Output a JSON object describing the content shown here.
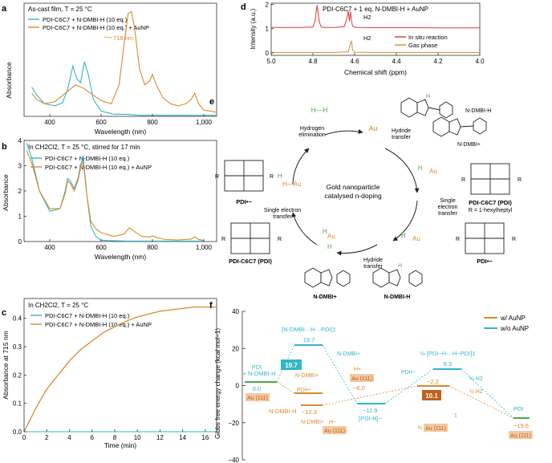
{
  "panels": {
    "a": {
      "letter": "a",
      "legend_title": "As-cast film, T = 25 °C",
      "legend": [
        "PDI-C6C7 + N-DMBI-H (10 eq.)",
        "PDI-C6C7 + N-DMBI-H (10 eq.) + AuNP"
      ],
      "peak_label": "718 nm",
      "xlabel": "Wavelength (nm)",
      "ylabel": "Absorbance",
      "xticks": [
        "400",
        "600",
        "800",
        "1,000"
      ]
    },
    "b": {
      "letter": "b",
      "legend_title": "In CH2Cl2, T = 25 °C, stirred for 17 min",
      "legend": [
        "PDI-C6C7 + N-DMBI-H (10 eq.)",
        "PDI-C6C7 + N-DMBI-H (10 eq.) + AuNP"
      ],
      "xlabel": "Wavelength (nm)",
      "ylabel": "Absorbance",
      "xticks": [
        "400",
        "600",
        "800",
        "1,000"
      ],
      "yticks": [
        "0",
        "1",
        "2",
        "3",
        "4"
      ]
    },
    "c": {
      "letter": "c",
      "legend_title": "In CH2Cl2, T = 25 °C",
      "legend": [
        "PDI-C6C7 + N-DMBI-H (10 eq.)",
        "PDI-C6C7 + N-DMBI-H (10 eq.) + AuNP"
      ],
      "xlabel": "Time (min)",
      "ylabel": "Absorbance at 715 nm",
      "xticks": [
        "0",
        "2",
        "4",
        "6",
        "8",
        "10",
        "12",
        "14",
        "16"
      ],
      "yticks": [
        "0.0",
        "0.1",
        "0.2",
        "0.3",
        "0.4"
      ]
    },
    "d": {
      "letter": "d",
      "title": "PDI-C6C7 + 1 eq. N-DMBI-H + AuNP",
      "h2_label": "H2",
      "legend": [
        "In situ reaction",
        "Gas phase"
      ],
      "xlabel": "Chemical shift (ppm)",
      "ylabel": "Intensity (a.u.)",
      "xticks": [
        "5.0",
        "4.8",
        "4.6",
        "4.4",
        "4.2",
        "4.0"
      ],
      "yticks": [
        "0",
        "1",
        "2"
      ]
    },
    "e": {
      "letter": "e",
      "center_text": [
        "Gold nanoparticle",
        "catalysed n-doping"
      ],
      "labels": {
        "h2": "H—H",
        "au": "Au",
        "hydrogen_elim": [
          "Hydrogen",
          "elimination"
        ],
        "hydride_transfer": [
          "Hydride",
          "transfer"
        ],
        "single_et": [
          "Single",
          "electron",
          "transfer"
        ],
        "single_et_left": [
          "Single electron",
          "transfer"
        ],
        "ndmbi_h_dot": "N-DMBI-H",
        "ndmbi_plus": "N-DMBI+",
        "ndmbi_h": "N-DMBI-H",
        "pdi": "PDI-C6C7 (PDI)",
        "r_def": "R = 1-hexylheptyl",
        "pdi_minus": "PDI•−",
        "pdi_c6c7": "PDI-C6C7 (PDI)",
        "r": "R",
        "h": "H",
        "h_au": "H—Au"
      }
    },
    "f": {
      "letter": "f",
      "ylabel": "Gibbs free energy change (kcal mol−1)",
      "yticks": [
        "40",
        "20",
        "0",
        "−20",
        "−40"
      ],
      "legend": [
        "w/ AuNP",
        "w/o AuNP"
      ],
      "labels": {
        "pdi_start": "PDI",
        "ndmbi_start": "+ N-DMBI-H",
        "v0": "0.0",
        "ts1": "[N-DMBI···H···PDI]‡",
        "v197": "19.7",
        "barrier1": "19.7",
        "ndmbi_plus_a": "N-DMBI+",
        "ndmbi_plus_b": "N-DMBI+",
        "pdi_rad": "PDI•−",
        "h_plus": "H+",
        "au111_a": "Au (111)",
        "vm60": "−6.0",
        "vm123": "−12.3",
        "ndmbih": "N-DMBI-H",
        "ndmbi_plus_c": "N-DMBI+",
        "h_minus": "H−",
        "au111_b": "Au (111)",
        "vm119": "−11.9",
        "pdih": "[PDI-H]−",
        "ts2": "½ [PDI−H···H−PDI]‡",
        "v63": "6.3",
        "pdi_minus2": "PDI•−",
        "half_h2_a": "½ H2",
        "half_h2_b": "½ H2",
        "vm22": "−2.2",
        "barrier2": "10.1",
        "half_au": "½",
        "au111_c": "Au (111)",
        "dagger": "‡",
        "pdi_end": "PDI",
        "vm196": "−19.6",
        "au111_d": "Au (111)",
        "au111_start": "Au (111)"
      }
    }
  },
  "colors": {
    "teal": "#33b5c9",
    "orange": "#d98a2b",
    "red": "#d93a3a",
    "green": "#4caa4c"
  },
  "chart_data": [
    {
      "type": "line",
      "panel": "a",
      "series": [
        {
          "name": "PDI-C6C7 + N-DMBI-H (10 eq.)",
          "x": [
            330,
            350,
            380,
            420,
            450,
            470,
            490,
            505,
            520,
            535,
            550,
            570,
            600,
            650,
            700,
            750,
            800,
            850,
            900,
            950,
            1000,
            1050
          ],
          "values": [
            0.28,
            0.2,
            0.12,
            0.1,
            0.13,
            0.26,
            0.48,
            0.36,
            0.32,
            0.52,
            0.4,
            0.16,
            0.05,
            0.02,
            0.02,
            0.01,
            0.01,
            0.01,
            0.01,
            0.01,
            0.01,
            0.01
          ]
        },
        {
          "name": "PDI-C6C7 + N-DMBI-H (10 eq.) + AuNP",
          "x": [
            330,
            350,
            380,
            420,
            450,
            480,
            500,
            530,
            560,
            600,
            640,
            670,
            690,
            705,
            718,
            730,
            750,
            770,
            790,
            800,
            815,
            840,
            870,
            900,
            930,
            950,
            965,
            980,
            1000,
            1050
          ],
          "values": [
            0.22,
            0.16,
            0.12,
            0.14,
            0.2,
            0.26,
            0.3,
            0.27,
            0.22,
            0.15,
            0.12,
            0.3,
            0.7,
            0.98,
            1.0,
            0.85,
            0.45,
            0.3,
            0.34,
            0.4,
            0.3,
            0.18,
            0.12,
            0.1,
            0.12,
            0.16,
            0.22,
            0.12,
            0.06,
            0.04
          ]
        }
      ],
      "xlim": [
        300,
        1050
      ],
      "legend_position": "top-left"
    },
    {
      "type": "line",
      "panel": "b",
      "series": [
        {
          "name": "PDI-C6C7 + N-DMBI-H (10 eq.)",
          "x": [
            310,
            330,
            360,
            400,
            440,
            460,
            470,
            480,
            495,
            510,
            520,
            530,
            545,
            560,
            580,
            600,
            700,
            800,
            900,
            1000
          ],
          "values": [
            3.9,
            3.3,
            2.0,
            1.2,
            1.3,
            2.0,
            2.5,
            2.4,
            2.1,
            2.5,
            3.0,
            3.4,
            1.8,
            0.6,
            0.2,
            0.05,
            0.02,
            0.02,
            0.02,
            0.02
          ]
        },
        {
          "name": "PDI-C6C7 + N-DMBI-H (10 eq.) + AuNP",
          "x": [
            310,
            330,
            360,
            400,
            440,
            460,
            470,
            480,
            495,
            510,
            520,
            530,
            545,
            560,
            580,
            600,
            650,
            690,
            710,
            730,
            760,
            790,
            800,
            820,
            850,
            900,
            950,
            965,
            980,
            1000
          ],
          "values": [
            3.6,
            3.1,
            2.0,
            1.3,
            1.3,
            1.9,
            2.4,
            2.3,
            2.0,
            2.4,
            2.9,
            3.2,
            1.8,
            0.8,
            0.5,
            0.35,
            0.2,
            0.3,
            0.55,
            0.4,
            0.2,
            0.18,
            0.22,
            0.15,
            0.08,
            0.06,
            0.1,
            0.18,
            0.08,
            0.05
          ]
        }
      ],
      "xlim": [
        300,
        1050
      ],
      "ylim": [
        0,
        4
      ],
      "legend_position": "top-left"
    },
    {
      "type": "line",
      "panel": "c",
      "series": [
        {
          "name": "PDI-C6C7 + N-DMBI-H (10 eq.)",
          "x": [
            0,
            2,
            4,
            6,
            8,
            10,
            12,
            14,
            17
          ],
          "values": [
            0,
            0,
            0,
            0,
            0,
            0,
            0,
            0,
            0
          ]
        },
        {
          "name": "PDI-C6C7 + N-DMBI-H (10 eq.) + AuNP",
          "x": [
            0,
            0.5,
            1,
            2,
            3,
            4,
            5,
            6,
            7,
            8,
            9,
            10,
            11,
            12,
            13,
            14,
            15,
            16,
            17
          ],
          "values": [
            0,
            0.04,
            0.08,
            0.15,
            0.2,
            0.25,
            0.29,
            0.32,
            0.35,
            0.37,
            0.39,
            0.405,
            0.415,
            0.425,
            0.43,
            0.435,
            0.44,
            0.44,
            0.44
          ]
        }
      ],
      "xlim": [
        0,
        17
      ],
      "ylim": [
        0,
        0.47
      ],
      "legend_position": "top-left"
    },
    {
      "type": "line",
      "panel": "d",
      "series": [
        {
          "name": "In situ reaction",
          "x": [
            5.0,
            4.85,
            4.8,
            4.79,
            4.78,
            4.77,
            4.76,
            4.74,
            4.7,
            4.65,
            4.64,
            4.63,
            4.625,
            4.62,
            4.615,
            4.61,
            4.6,
            4.58,
            4.5,
            4.4,
            4.3,
            4.2,
            4.1,
            4.0
          ],
          "values": [
            1.05,
            1.05,
            1.07,
            1.3,
            1.97,
            1.3,
            1.06,
            1.05,
            1.05,
            1.08,
            1.35,
            1.72,
            1.3,
            1.7,
            1.35,
            1.1,
            1.06,
            1.05,
            1.04,
            1.04,
            1.04,
            1.03,
            1.03,
            1.03
          ]
        },
        {
          "name": "Gas phase",
          "x": [
            5.0,
            4.7,
            4.63,
            4.62,
            4.615,
            4.61,
            4.6,
            4.5,
            4.0
          ],
          "values": [
            0.02,
            0.02,
            0.05,
            0.4,
            0.48,
            0.12,
            0.03,
            0.02,
            0.02
          ]
        }
      ],
      "xlim": [
        5.0,
        4.0
      ],
      "ylim": [
        -0.1,
        2.05
      ],
      "legend_position": "bottom-right"
    }
  ]
}
